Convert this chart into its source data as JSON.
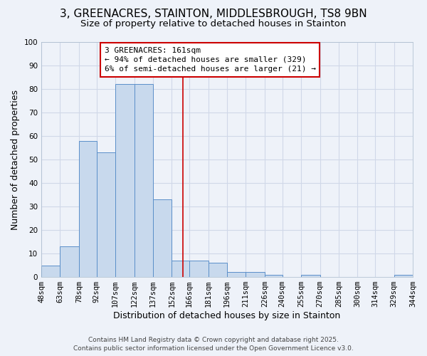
{
  "title": "3, GREENACRES, STAINTON, MIDDLESBROUGH, TS8 9BN",
  "subtitle": "Size of property relative to detached houses in Stainton",
  "xlabel": "Distribution of detached houses by size in Stainton",
  "ylabel": "Number of detached properties",
  "bin_edges": [
    48,
    63,
    78,
    92,
    107,
    122,
    137,
    152,
    166,
    181,
    196,
    211,
    226,
    240,
    255,
    270,
    285,
    300,
    314,
    329,
    344
  ],
  "bin_labels": [
    "48sqm",
    "63sqm",
    "78sqm",
    "92sqm",
    "107sqm",
    "122sqm",
    "137sqm",
    "152sqm",
    "166sqm",
    "181sqm",
    "196sqm",
    "211sqm",
    "226sqm",
    "240sqm",
    "255sqm",
    "270sqm",
    "285sqm",
    "300sqm",
    "314sqm",
    "329sqm",
    "344sqm"
  ],
  "counts": [
    5,
    13,
    58,
    53,
    82,
    82,
    33,
    7,
    7,
    6,
    2,
    2,
    1,
    0,
    1,
    0,
    0,
    0,
    0,
    1
  ],
  "bar_facecolor": "#c8d9ed",
  "bar_edgecolor": "#5b8fc9",
  "grid_color": "#d0d8e8",
  "background_color": "#eef2f9",
  "vline_x": 161,
  "vline_color": "#cc0000",
  "annotation_title": "3 GREENACRES: 161sqm",
  "annotation_line1": "← 94% of detached houses are smaller (329)",
  "annotation_line2": "6% of semi-detached houses are larger (21) →",
  "annotation_box_edgecolor": "#cc0000",
  "ylim": [
    0,
    100
  ],
  "yticks": [
    0,
    10,
    20,
    30,
    40,
    50,
    60,
    70,
    80,
    90,
    100
  ],
  "footer1": "Contains HM Land Registry data © Crown copyright and database right 2025.",
  "footer2": "Contains public sector information licensed under the Open Government Licence v3.0.",
  "title_fontsize": 11,
  "subtitle_fontsize": 9.5,
  "axis_label_fontsize": 9,
  "tick_fontsize": 7.5,
  "annotation_fontsize": 8,
  "footer_fontsize": 6.5
}
